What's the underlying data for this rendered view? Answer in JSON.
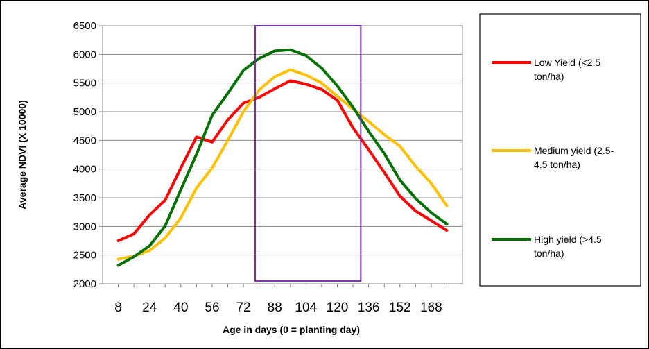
{
  "chart_data": {
    "type": "line",
    "xlabel": "Age in days (0 = planting day)",
    "ylabel": "Average NDVI (X 10000)",
    "ylim": [
      2000,
      6500
    ],
    "yticks": [
      2000,
      2500,
      3000,
      3500,
      4000,
      4500,
      5000,
      5500,
      6000,
      6500
    ],
    "x": [
      8,
      16,
      24,
      32,
      40,
      48,
      56,
      64,
      72,
      80,
      88,
      96,
      104,
      112,
      120,
      128,
      136,
      144,
      152,
      160,
      168,
      176
    ],
    "xtick_labels": [
      "8",
      "24",
      "40",
      "56",
      "72",
      "88",
      "104",
      "120",
      "136",
      "152",
      "168"
    ],
    "grid": "horizontal",
    "legend_position": "right",
    "highlight_box": {
      "x_from": 78,
      "x_to": 132,
      "y_from": 2050,
      "y_to": 6500,
      "color": "#7030a0"
    },
    "series": [
      {
        "name": "Low Yield (<2.5 ton/ha)",
        "legend_lines": [
          "Low Yield (<2.5",
          "ton/ha)"
        ],
        "color": "#ff0000",
        "values": [
          2750,
          2870,
          3200,
          3460,
          4020,
          4560,
          4470,
          4860,
          5150,
          5250,
          5400,
          5540,
          5480,
          5390,
          5200,
          4720,
          4340,
          3940,
          3530,
          3270,
          3100,
          2930
        ]
      },
      {
        "name": "Medium yield (2.5-4.5 ton/ha)",
        "legend_lines": [
          "Medium yield (2.5-",
          "4.5 ton/ha)"
        ],
        "color": "#ffc000",
        "values": [
          2430,
          2480,
          2580,
          2800,
          3150,
          3670,
          4020,
          4500,
          5000,
          5380,
          5610,
          5730,
          5640,
          5500,
          5270,
          5050,
          4830,
          4600,
          4400,
          4050,
          3750,
          3360
        ]
      },
      {
        "name": "High yield (>4.5 ton/ha)",
        "legend_lines": [
          "High yield (>4.5",
          "ton/ha)"
        ],
        "color": "#007000",
        "values": [
          2320,
          2470,
          2660,
          3010,
          3640,
          4260,
          4940,
          5320,
          5720,
          5930,
          6060,
          6080,
          5980,
          5760,
          5450,
          5080,
          4660,
          4270,
          3810,
          3490,
          3240,
          3040
        ]
      }
    ]
  }
}
